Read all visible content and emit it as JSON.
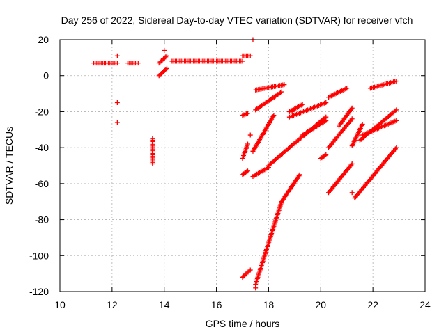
{
  "chart_data": {
    "type": "scatter",
    "title": "Day 256 of 2022, Sidereal Day-to-day VTEC variation (SDTVAR) for receiver vfch",
    "xlabel": "GPS time / hours",
    "ylabel": "SDTVAR / TECUs",
    "xlim": [
      10,
      24
    ],
    "ylim": [
      -120,
      20
    ],
    "x_ticks": [
      "10",
      "12",
      "14",
      "16",
      "18",
      "20",
      "22",
      "24"
    ],
    "y_ticks": [
      "20",
      "0",
      "-20",
      "-40",
      "-60",
      "-80",
      "-100",
      "-120"
    ],
    "grid": true,
    "marker": "+",
    "color": "#ff0000",
    "segments": [
      {
        "x": [
          11.3,
          12.2
        ],
        "y": [
          7,
          7
        ]
      },
      {
        "x": [
          12.6,
          12.9
        ],
        "y": [
          7,
          7
        ]
      },
      {
        "x": [
          13.8,
          14.1
        ],
        "y": [
          7,
          11
        ]
      },
      {
        "x": [
          13.8,
          14.1
        ],
        "y": [
          0,
          4
        ]
      },
      {
        "x": [
          14.3,
          17.0
        ],
        "y": [
          8,
          8
        ]
      },
      {
        "x": [
          17.0,
          17.3
        ],
        "y": [
          11,
          11
        ]
      },
      {
        "x": [
          13.55,
          13.55
        ],
        "y": [
          -49,
          -35
        ]
      },
      {
        "x": [
          17.0,
          17.2
        ],
        "y": [
          -46,
          -38
        ]
      },
      {
        "x": [
          17.0,
          17.2
        ],
        "y": [
          -55,
          -53
        ]
      },
      {
        "x": [
          17.0,
          17.2
        ],
        "y": [
          -22,
          -21
        ]
      },
      {
        "x": [
          17.0,
          17.3
        ],
        "y": [
          -112,
          -108
        ]
      },
      {
        "x": [
          17.5,
          18.6
        ],
        "y": [
          -8,
          -5
        ]
      },
      {
        "x": [
          17.5,
          18.5
        ],
        "y": [
          -19,
          -9
        ]
      },
      {
        "x": [
          17.4,
          18.2
        ],
        "y": [
          -42,
          -22
        ]
      },
      {
        "x": [
          17.4,
          18.0
        ],
        "y": [
          -56,
          -51
        ]
      },
      {
        "x": [
          18.0,
          18.8
        ],
        "y": [
          -50,
          -40
        ]
      },
      {
        "x": [
          17.5,
          18.5
        ],
        "y": [
          -116,
          -70
        ]
      },
      {
        "x": [
          18.5,
          19.2
        ],
        "y": [
          -70,
          -55
        ]
      },
      {
        "x": [
          18.8,
          19.3
        ],
        "y": [
          -20,
          -16
        ]
      },
      {
        "x": [
          18.8,
          20.2
        ],
        "y": [
          -23,
          -15
        ]
      },
      {
        "x": [
          18.8,
          20.2
        ],
        "y": [
          -40,
          -23
        ]
      },
      {
        "x": [
          19.3,
          20.2
        ],
        "y": [
          -33,
          -25
        ]
      },
      {
        "x": [
          20.0,
          20.2
        ],
        "y": [
          -46,
          -44
        ]
      },
      {
        "x": [
          20.3,
          21.0
        ],
        "y": [
          -12,
          -7
        ]
      },
      {
        "x": [
          20.3,
          21.2
        ],
        "y": [
          -40,
          -24
        ]
      },
      {
        "x": [
          20.3,
          21.2
        ],
        "y": [
          -65,
          -49
        ]
      },
      {
        "x": [
          20.7,
          21.2
        ],
        "y": [
          -28,
          -18
        ]
      },
      {
        "x": [
          21.2,
          21.6
        ],
        "y": [
          -39,
          -27
        ]
      },
      {
        "x": [
          21.3,
          22.9
        ],
        "y": [
          -68,
          -40
        ]
      },
      {
        "x": [
          21.5,
          22.9
        ],
        "y": [
          -36,
          -19
        ]
      },
      {
        "x": [
          21.6,
          22.9
        ],
        "y": [
          -33,
          -25
        ]
      },
      {
        "x": [
          21.9,
          22.9
        ],
        "y": [
          -7,
          -3
        ]
      }
    ],
    "points": [
      {
        "x": 12.2,
        "y": 11
      },
      {
        "x": 13.0,
        "y": 7
      },
      {
        "x": 12.2,
        "y": -15
      },
      {
        "x": 12.2,
        "y": -26
      },
      {
        "x": 14.0,
        "y": 14
      },
      {
        "x": 17.4,
        "y": 20
      },
      {
        "x": 17.3,
        "y": -33
      },
      {
        "x": 18.9,
        "y": -20
      },
      {
        "x": 21.2,
        "y": -65
      },
      {
        "x": 17.5,
        "y": -118
      }
    ]
  }
}
